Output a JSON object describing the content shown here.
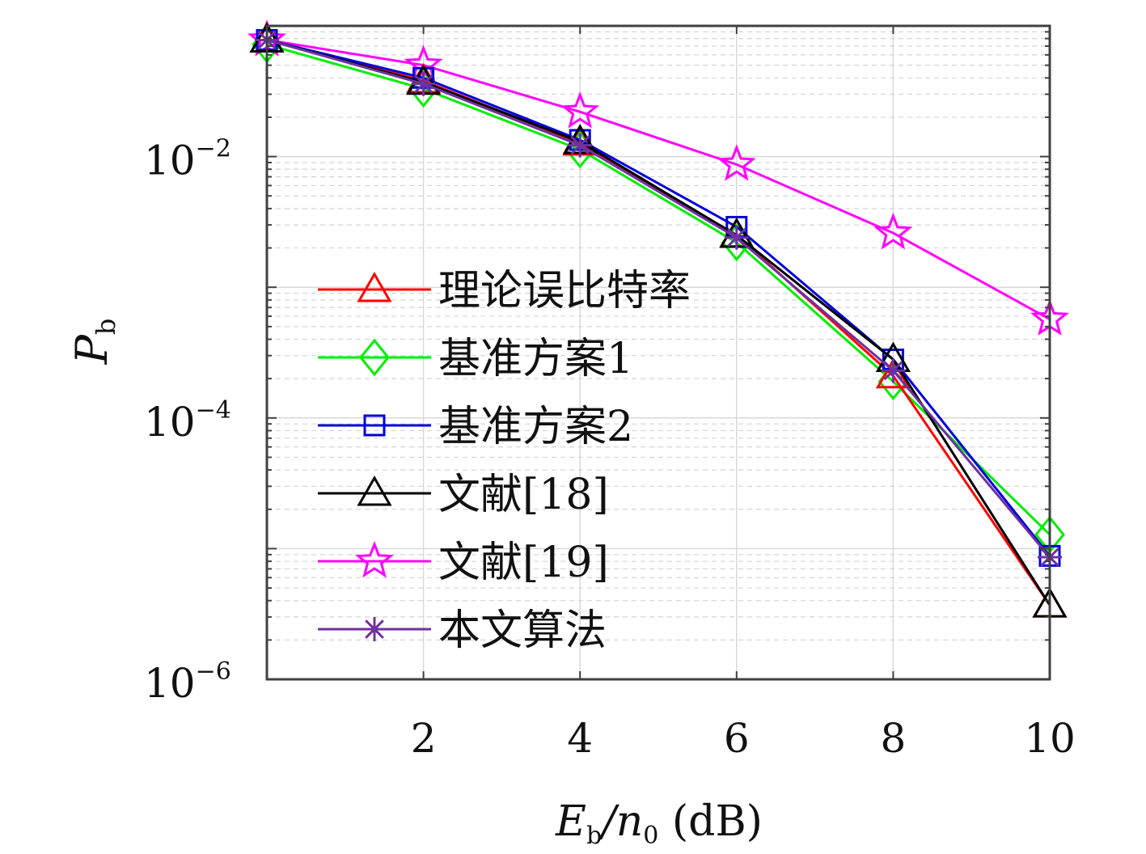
{
  "chart_data": {
    "type": "line",
    "title": "",
    "xlabel": "E_b/n_0 (dB)",
    "ylabel": "P_b",
    "x_axis": {
      "title_main": "E",
      "title_main_sub": "b",
      "title_sep": "/n",
      "title_sep_sub": "0",
      "title_unit": " (dB)",
      "range": [
        0,
        10
      ],
      "ticks": [
        2,
        4,
        6,
        8,
        10
      ],
      "tick_labels": [
        "2",
        "4",
        "6",
        "8",
        "10"
      ]
    },
    "y_axis": {
      "title_main": "P",
      "title_sub": "b",
      "scale": "log",
      "range": [
        1e-06,
        0.1
      ],
      "ticks": [
        0.01,
        0.0001,
        1e-06
      ],
      "tick_base": "10",
      "tick_exponents": [
        "−2",
        "−4",
        "−6"
      ]
    },
    "grid": true,
    "legend_position": "left",
    "x": [
      0,
      2,
      4,
      6,
      8,
      10
    ],
    "series": [
      {
        "name": "理论误比特率",
        "color": "#ff0000",
        "marker": "triangle",
        "values": [
          0.078,
          0.038,
          0.0127,
          0.0025,
          0.00021,
          3.7e-06
        ]
      },
      {
        "name": "基准方案1",
        "color": "#00ee00",
        "marker": "diamond",
        "values": [
          0.072,
          0.033,
          0.0113,
          0.0022,
          0.00019,
          1.28e-05
        ]
      },
      {
        "name": "基准方案2",
        "color": "#0000dd",
        "marker": "square",
        "values": [
          0.078,
          0.04,
          0.0134,
          0.0029,
          0.00028,
          8.8e-06
        ]
      },
      {
        "name": "文献[18]",
        "color": "#000000",
        "marker": "triangle",
        "values": [
          0.078,
          0.037,
          0.013,
          0.0025,
          0.00028,
          3.7e-06
        ]
      },
      {
        "name": "文献[19]",
        "color": "#ff00ff",
        "marker": "star",
        "values": [
          0.078,
          0.05,
          0.022,
          0.0087,
          0.0026,
          0.00057
        ]
      },
      {
        "name": "本文算法",
        "color": "#7030a0",
        "marker": "asterisk",
        "values": [
          0.078,
          0.036,
          0.0122,
          0.0024,
          0.00023,
          8.6e-06
        ]
      }
    ]
  }
}
